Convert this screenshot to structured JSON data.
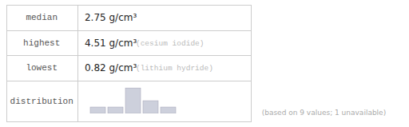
{
  "chart_data": {
    "type": "bar",
    "rows": [
      {
        "label": "median",
        "value": "2.75 g/cm³"
      },
      {
        "label": "highest",
        "value": "4.51 g/cm³",
        "note": "(cesium iodide)"
      },
      {
        "label": "lowest",
        "value": "0.82 g/cm³",
        "note": "(lithium hydride)"
      },
      {
        "label": "distribution"
      }
    ],
    "footnote": "(based on 9 values; 1 unavailable)",
    "categories": [
      null,
      null,
      null,
      null,
      null
    ],
    "values": [
      1,
      1,
      4,
      2,
      1
    ],
    "color": "#cdd0dc",
    "ylim": [
      0,
      4.4
    ],
    "tick_labels": false
  }
}
